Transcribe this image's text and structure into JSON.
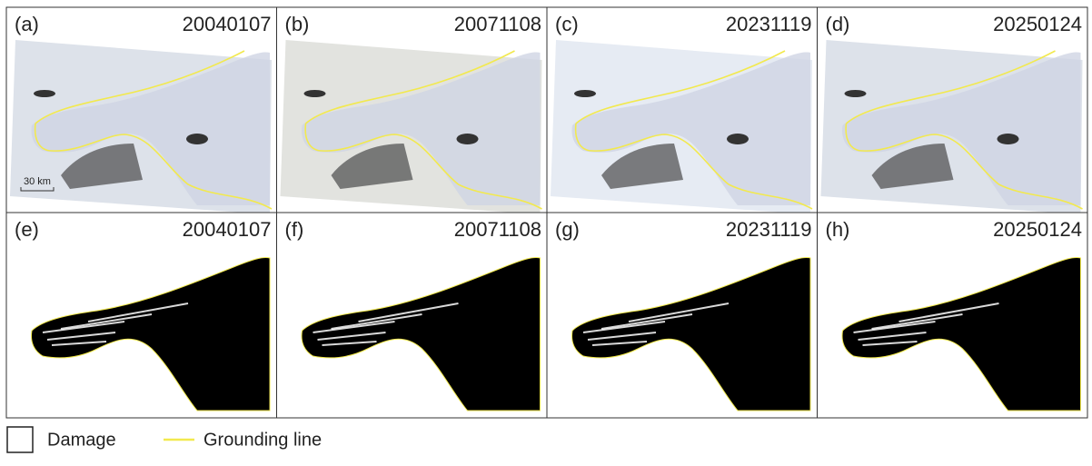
{
  "panels": [
    {
      "label": "(a)",
      "date": "20040107"
    },
    {
      "label": "(b)",
      "date": "20071108"
    },
    {
      "label": "(c)",
      "date": "20231119"
    },
    {
      "label": "(d)",
      "date": "20250124"
    },
    {
      "label": "(e)",
      "date": "20040107"
    },
    {
      "label": "(f)",
      "date": "20071108"
    },
    {
      "label": "(g)",
      "date": "20231119"
    },
    {
      "label": "(h)",
      "date": "20250124"
    }
  ],
  "scale_bar": "30 km",
  "legend": [
    {
      "label": "Damage"
    },
    {
      "label": "Grounding line"
    }
  ]
}
